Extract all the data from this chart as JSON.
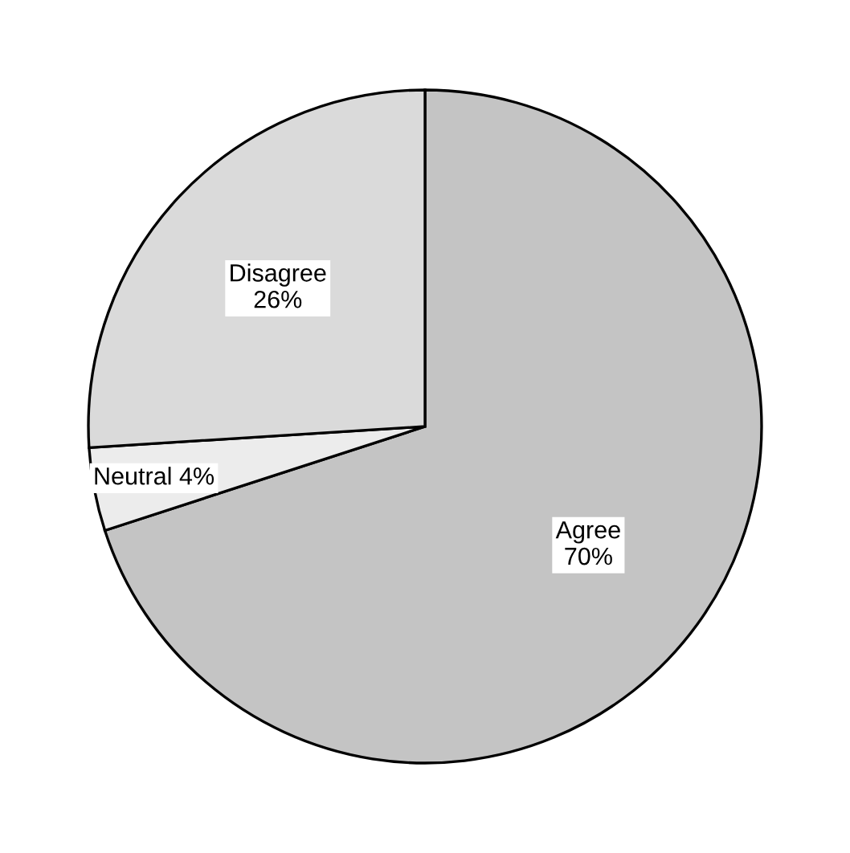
{
  "chart_data": {
    "type": "pie",
    "categories": [
      "Agree",
      "Neutral",
      "Disagree"
    ],
    "values": [
      70,
      4,
      26
    ],
    "value_labels": [
      "70%",
      "4%",
      "26%"
    ],
    "colors": [
      "#c4c4c4",
      "#ececec",
      "#dadada"
    ]
  }
}
